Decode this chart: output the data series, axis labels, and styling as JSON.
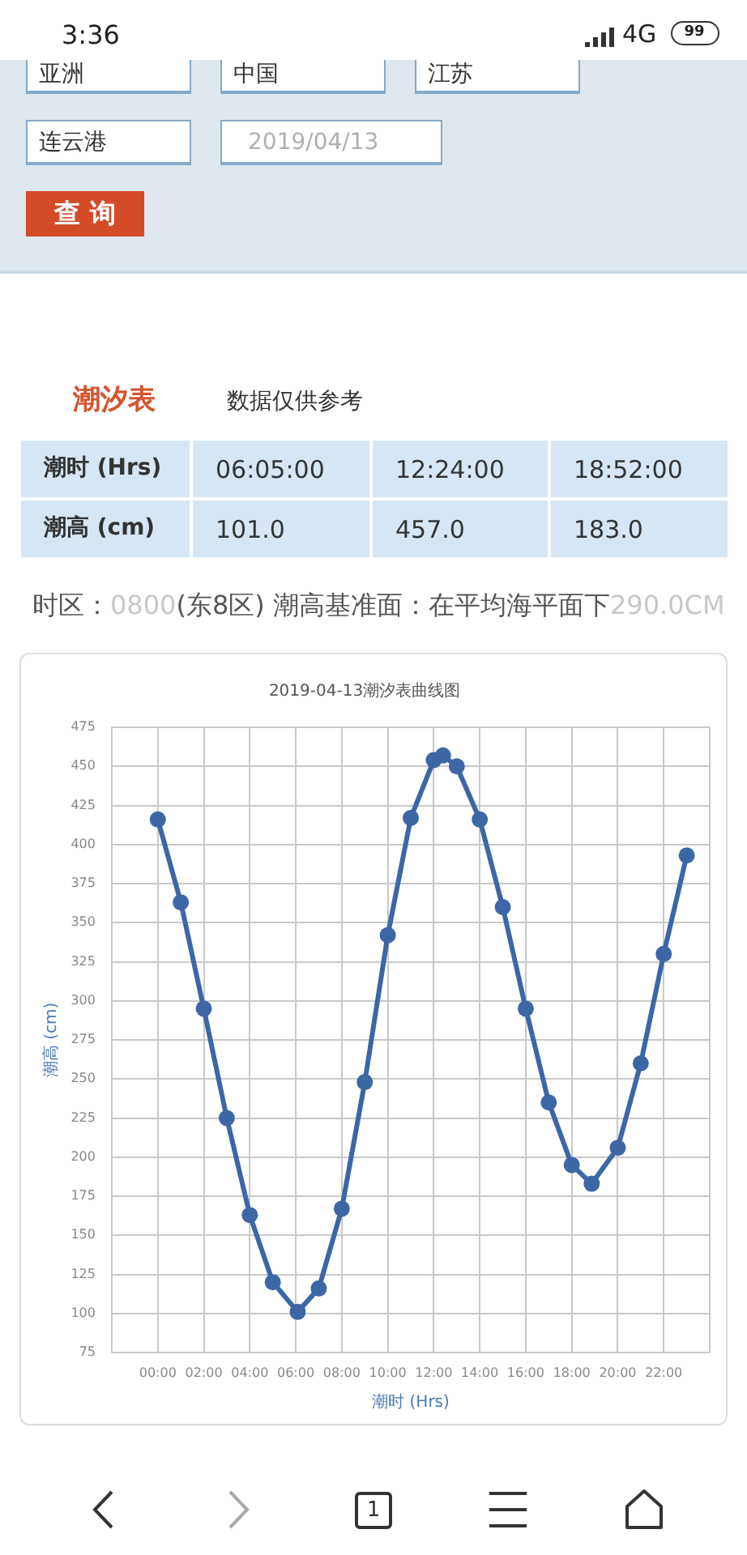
{
  "chart_data": {
    "type": "line",
    "title": "2019-04-13潮汐表曲线图",
    "xlabel": "潮时 (Hrs)",
    "ylabel": "潮高 (cm)",
    "x": [
      0,
      1,
      2,
      3,
      4,
      5,
      6.083,
      7,
      8,
      9,
      10,
      11,
      12,
      12.4,
      13,
      14,
      15,
      16,
      17,
      18,
      18.867,
      20,
      21,
      22,
      23
    ],
    "values": [
      416,
      363,
      295,
      225,
      163,
      120,
      101,
      116,
      167,
      248,
      342,
      417,
      454,
      457,
      450,
      416,
      360,
      295,
      235,
      195,
      183,
      206,
      260,
      330,
      393
    ],
    "color": "#3d66a5",
    "xlim": [
      -2,
      24
    ],
    "xticks": [
      {
        "value": -2,
        "label": null
      },
      {
        "value": 0,
        "label": "00:00"
      },
      {
        "value": 2,
        "label": "02:00"
      },
      {
        "value": 4,
        "label": "04:00"
      },
      {
        "value": 6,
        "label": "06:00"
      },
      {
        "value": 8,
        "label": "08:00"
      },
      {
        "value": 10,
        "label": "10:00"
      },
      {
        "value": 12,
        "label": "12:00"
      },
      {
        "value": 14,
        "label": "14:00"
      },
      {
        "value": 16,
        "label": "16:00"
      },
      {
        "value": 18,
        "label": "18:00"
      },
      {
        "value": 20,
        "label": "20:00"
      },
      {
        "value": 22,
        "label": "22:00"
      },
      {
        "value": 24,
        "label": null
      }
    ],
    "ylim": [
      75,
      475
    ],
    "yticks": [
      75,
      100,
      125,
      150,
      175,
      200,
      225,
      250,
      275,
      300,
      325,
      350,
      375,
      400,
      425,
      450,
      475
    ],
    "grid": true,
    "marker": "circle",
    "line_style": "solid",
    "annotations": [
      "3:36",
      "4G",
      "99",
      "亚洲",
      "中国",
      "江苏",
      "连云港",
      "2019/04/13",
      "查询",
      "潮汐表",
      "数据仅供参考",
      "潮时 (Hrs)",
      "06:05:00",
      "12:24:00",
      "18:52:00",
      "潮高 (cm)",
      "101.0",
      "457.0",
      "183.0",
      "时区：",
      "0800",
      "(东8区) 潮高基准面：在平均海平面下",
      "290.0CM",
      "1"
    ]
  }
}
